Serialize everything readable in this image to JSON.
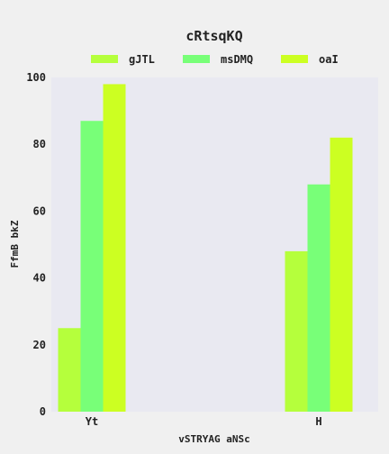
{
  "chart_data": {
    "type": "bar",
    "title": "cRtsqKQ",
    "xlabel": "vSTRYAG aNSc",
    "ylabel": "FfmB bkZ",
    "categories": [
      "Yt",
      "H"
    ],
    "series": [
      {
        "name": "gJTL",
        "values": [
          25,
          48
        ],
        "color": "#b5ff3c"
      },
      {
        "name": "msDMQ",
        "values": [
          87,
          68
        ],
        "color": "#78ff78"
      },
      {
        "name": "oaI",
        "values": [
          98,
          82
        ],
        "color": "#ccff22"
      }
    ],
    "ylim": [
      0,
      100
    ],
    "yticks": [
      "0",
      "20",
      "40",
      "60",
      "80",
      "100"
    ],
    "grid": false,
    "legend_position": "top",
    "plot_background": "#e9e9f1",
    "page_background": "#f0f0f0"
  }
}
